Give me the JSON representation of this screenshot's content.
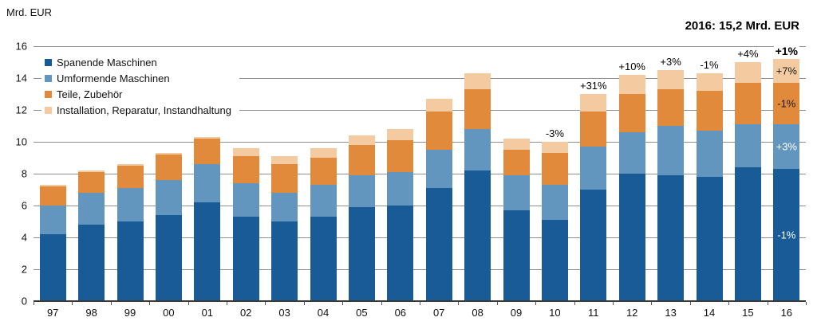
{
  "header": {
    "unit_label": "Mrd. EUR",
    "highlight": "2016: 15,2 Mrd. EUR"
  },
  "chart_data": {
    "type": "bar",
    "subtype": "stacked",
    "title": "2016: 15,2 Mrd. EUR",
    "ylabel": "Mrd. EUR",
    "xlabel": "",
    "ylim": [
      0,
      16
    ],
    "ytick_step": 2,
    "grid": true,
    "legend_position": "top-left",
    "categories": [
      "97",
      "98",
      "99",
      "00",
      "01",
      "02",
      "03",
      "04",
      "05",
      "06",
      "07",
      "08",
      "09",
      "10",
      "11",
      "12",
      "13",
      "14",
      "15",
      "16"
    ],
    "series": [
      {
        "name": "Spanende Maschinen",
        "color": "#185B96",
        "label_color": "#FFFFFF",
        "values": [
          4.2,
          4.8,
          5.0,
          5.4,
          6.2,
          5.3,
          5.0,
          5.3,
          5.9,
          6.0,
          7.1,
          8.2,
          5.7,
          5.1,
          7.0,
          8.0,
          7.9,
          7.8,
          8.4,
          8.3
        ]
      },
      {
        "name": "Umformende Maschinen",
        "color": "#6396BE",
        "label_color": "#FFFFFF",
        "values": [
          1.8,
          2.0,
          2.1,
          2.2,
          2.4,
          2.1,
          1.8,
          2.0,
          2.0,
          2.1,
          2.4,
          2.6,
          2.2,
          2.2,
          2.7,
          2.6,
          3.1,
          2.9,
          2.7,
          2.8
        ]
      },
      {
        "name": "Teile, Zubehör",
        "color": "#E18A3C",
        "label_color": "#1A1A1A",
        "values": [
          1.2,
          1.3,
          1.4,
          1.6,
          1.6,
          1.7,
          1.8,
          1.7,
          1.9,
          2.0,
          2.4,
          2.5,
          1.6,
          2.0,
          2.2,
          2.4,
          2.3,
          2.5,
          2.6,
          2.6
        ]
      },
      {
        "name": "Installation, Reparatur, Instandhaltung",
        "color": "#F4CBA0",
        "label_color": "#1A1A1A",
        "values": [
          0.1,
          0.1,
          0.1,
          0.1,
          0.1,
          0.5,
          0.5,
          0.6,
          0.6,
          0.7,
          0.8,
          1.0,
          0.7,
          0.7,
          1.1,
          1.2,
          1.2,
          1.1,
          1.3,
          1.5
        ]
      }
    ],
    "totals": [
      7.3,
      8.2,
      8.6,
      9.3,
      10.3,
      9.6,
      9.1,
      9.6,
      10.4,
      10.8,
      12.7,
      14.3,
      10.2,
      10.0,
      13.0,
      14.2,
      14.5,
      14.3,
      15.0,
      15.2
    ],
    "bar_annotations": [
      {
        "category": "10",
        "label": "-3%",
        "bold": false
      },
      {
        "category": "11",
        "label": "+31%",
        "bold": false
      },
      {
        "category": "12",
        "label": "+10%",
        "bold": false
      },
      {
        "category": "13",
        "label": "+3%",
        "bold": false
      },
      {
        "category": "14",
        "label": "-1%",
        "bold": false
      },
      {
        "category": "15",
        "label": "+4%",
        "bold": false
      },
      {
        "category": "16",
        "label": "+1%",
        "bold": true
      }
    ],
    "segment_annotations_2016": [
      {
        "series": "Spanende Maschinen",
        "label": "-1%"
      },
      {
        "series": "Umformende Maschinen",
        "label": "+3%"
      },
      {
        "series": "Teile, Zubehör",
        "label": "-1%"
      },
      {
        "series": "Installation, Reparatur, Instandhaltung",
        "label": "+7%"
      }
    ],
    "colors": {
      "grid": "#8F8F8F",
      "axis": "#3A3A3A",
      "text": "#111111"
    }
  }
}
